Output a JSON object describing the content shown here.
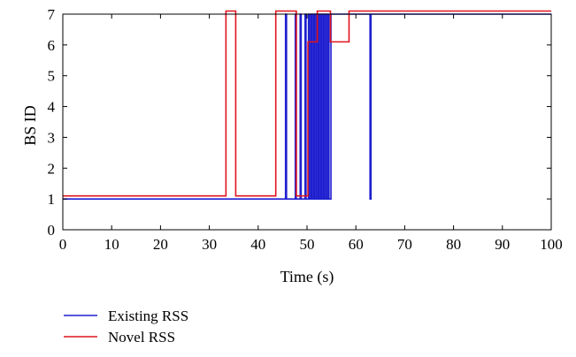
{
  "chart_data": {
    "type": "line",
    "title": "",
    "xlabel": "Time (s)",
    "ylabel": "BS ID",
    "xlim": [
      0,
      100
    ],
    "ylim": [
      0,
      7
    ],
    "xticks": [
      0,
      10,
      20,
      30,
      40,
      50,
      60,
      70,
      80,
      90,
      100
    ],
    "yticks": [
      0,
      1,
      2,
      3,
      4,
      5,
      6,
      7
    ],
    "grid": false,
    "legend_position": "bottom-left",
    "series": [
      {
        "name": "Existing RSS",
        "color": "#1f1fd0",
        "points": [
          [
            0,
            1
          ],
          [
            45.6,
            1
          ],
          [
            45.6,
            7
          ],
          [
            45.8,
            7
          ],
          [
            45.8,
            1
          ],
          [
            47.6,
            1
          ],
          [
            47.6,
            7
          ],
          [
            47.8,
            7
          ],
          [
            47.8,
            1
          ],
          [
            48.6,
            1
          ],
          [
            48.6,
            7
          ],
          [
            48.8,
            7
          ],
          [
            48.8,
            1
          ],
          [
            49.6,
            1
          ],
          [
            49.6,
            7
          ],
          [
            49.8,
            7
          ],
          [
            49.8,
            1
          ],
          [
            50.3,
            1
          ],
          [
            50.3,
            7
          ],
          [
            50.5,
            7
          ],
          [
            50.5,
            1
          ],
          [
            50.8,
            1
          ],
          [
            50.8,
            7
          ],
          [
            51.0,
            7
          ],
          [
            51.0,
            1
          ],
          [
            51.3,
            1
          ],
          [
            51.3,
            7
          ],
          [
            51.5,
            7
          ],
          [
            51.5,
            1
          ],
          [
            51.8,
            1
          ],
          [
            51.8,
            7
          ],
          [
            52.0,
            7
          ],
          [
            52.0,
            1
          ],
          [
            52.3,
            1
          ],
          [
            52.3,
            7
          ],
          [
            52.5,
            7
          ],
          [
            52.5,
            1
          ],
          [
            52.8,
            1
          ],
          [
            52.8,
            7
          ],
          [
            53.0,
            7
          ],
          [
            53.0,
            1
          ],
          [
            53.3,
            1
          ],
          [
            53.3,
            7
          ],
          [
            53.5,
            7
          ],
          [
            53.5,
            1
          ],
          [
            53.8,
            1
          ],
          [
            53.8,
            7
          ],
          [
            54.0,
            7
          ],
          [
            54.0,
            1
          ],
          [
            54.3,
            1
          ],
          [
            54.3,
            7
          ],
          [
            54.5,
            7
          ],
          [
            54.5,
            1
          ],
          [
            54.9,
            1
          ],
          [
            54.9,
            7
          ],
          [
            62.9,
            7
          ],
          [
            62.9,
            1
          ],
          [
            63.1,
            1
          ],
          [
            63.1,
            7
          ],
          [
            100,
            7
          ]
        ]
      },
      {
        "name": "Novel RSS",
        "color": "#e0141e",
        "points": [
          [
            0,
            1.1
          ],
          [
            33.4,
            1.1
          ],
          [
            33.4,
            7.1
          ],
          [
            35.4,
            7.1
          ],
          [
            35.4,
            1.1
          ],
          [
            43.6,
            1.1
          ],
          [
            43.6,
            7.1
          ],
          [
            47.8,
            7.1
          ],
          [
            47.8,
            1.1
          ],
          [
            50.2,
            1.1
          ],
          [
            50.2,
            6.1
          ],
          [
            52.1,
            6.1
          ],
          [
            52.1,
            7.1
          ],
          [
            54.8,
            7.1
          ],
          [
            54.8,
            6.1
          ],
          [
            58.6,
            6.1
          ],
          [
            58.6,
            7.1
          ],
          [
            100,
            7.1
          ]
        ]
      }
    ]
  }
}
